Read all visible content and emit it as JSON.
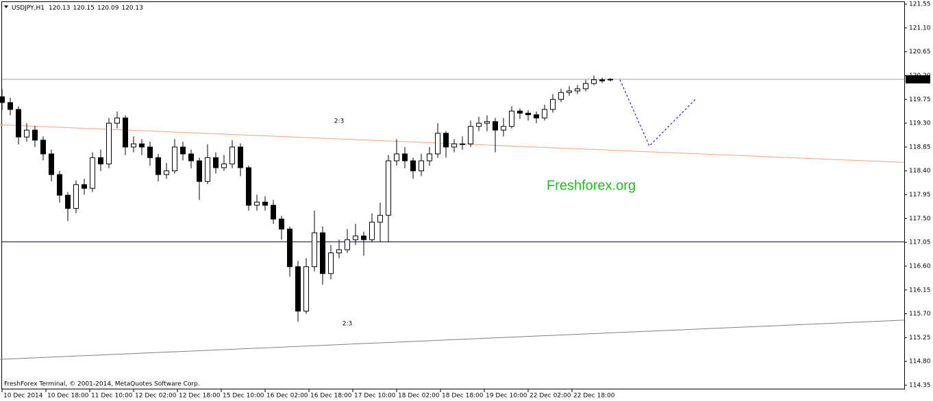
{
  "chart_data": {
    "type": "candlestick",
    "symbol": "USDJPY,H1",
    "footer": "FreshForex Terminal, © 2001-2014, MetaQuotes Software Corp.",
    "watermark": "Freshforex.org",
    "annotations": [
      {
        "text": "2:3",
        "color": "#cc2222"
      },
      {
        "text": "2:3",
        "color": "#000000"
      }
    ],
    "up_color": "#ffffff",
    "down_color": "#000000",
    "outline_color": "#000000",
    "xlim": [
      -0.75,
      329.25
    ],
    "ylim": [
      114.35,
      121.55
    ],
    "yticks": [
      121.55,
      {
        "value": 121.1,
        "label": "121.10"
      },
      120.65,
      {
        "value": 120.2,
        "label": "120.20"
      },
      119.75,
      {
        "value": 119.3,
        "label": "119.30"
      },
      118.85,
      {
        "value": 118.4,
        "label": "118.40"
      },
      117.95,
      {
        "value": 117.5,
        "label": "117.50"
      },
      117.05,
      {
        "value": 116.6,
        "label": "116.60"
      },
      116.15,
      {
        "value": 115.7,
        "label": "115.70"
      },
      115.25,
      {
        "value": 114.8,
        "label": "114.80"
      },
      114.35
    ],
    "xticks": [
      {
        "value": 0,
        "label": "10 Dec 2014"
      },
      {
        "value": 16,
        "label": "10 Dec 18:00"
      },
      {
        "value": 32,
        "label": "11 Dec 10:00"
      },
      {
        "value": 48,
        "label": "12 Dec 02:00"
      },
      {
        "value": 64,
        "label": "12 Dec 18:00"
      },
      {
        "value": 80,
        "label": "15 Dec 10:00"
      },
      {
        "value": 96,
        "label": "16 Dec 02:00"
      },
      {
        "value": 112,
        "label": "16 Dec 18:00"
      },
      {
        "value": 128,
        "label": "17 Dec 10:00"
      },
      {
        "value": 144,
        "label": "18 Dec 02:00"
      },
      {
        "value": 160,
        "label": "18 Dec 18:00"
      },
      {
        "value": 176,
        "label": "19 Dec 10:00"
      },
      {
        "value": 192,
        "label": "22 Dec 02:00"
      },
      {
        "value": 208,
        "label": "22 Dec 18:00"
      }
    ],
    "x": [
      0,
      3,
      6,
      9,
      12,
      15,
      18,
      21,
      24,
      27,
      30,
      33,
      36,
      39,
      42,
      45,
      48,
      51,
      54,
      57,
      60,
      63,
      66,
      69,
      72,
      75,
      78,
      81,
      84,
      87,
      90,
      93,
      96,
      99,
      102,
      105,
      108,
      111,
      114,
      117,
      120,
      123,
      126,
      129,
      132,
      135,
      138,
      141,
      144,
      147,
      150,
      153,
      156,
      159,
      162,
      165,
      168,
      171,
      174,
      177,
      180,
      183,
      186,
      189,
      192,
      195,
      198,
      201,
      204,
      207,
      210,
      213,
      216,
      219,
      222
    ],
    "open": [
      119.8,
      119.69,
      119.56,
      119.04,
      119.17,
      118.98,
      118.72,
      118.33,
      117.94,
      117.69,
      118.14,
      118.07,
      118.65,
      118.53,
      119.3,
      119.4,
      118.85,
      118.91,
      118.85,
      118.65,
      118.33,
      118.4,
      118.85,
      118.72,
      118.59,
      118.2,
      118.65,
      118.46,
      118.53,
      118.85,
      118.46,
      117.75,
      117.81,
      117.75,
      117.49,
      117.3,
      116.59,
      115.75,
      116.59,
      117.23,
      116.46,
      116.85,
      116.91,
      117.1,
      117.17,
      117.1,
      117.43,
      117.56,
      118.59,
      118.72,
      118.59,
      118.4,
      118.59,
      118.72,
      119.11,
      118.85,
      118.91,
      118.91,
      119.24,
      119.3,
      119.33,
      119.17,
      119.24,
      119.53,
      119.49,
      119.46,
      119.4,
      119.56,
      119.75,
      119.88,
      119.91,
      119.95,
      120.05,
      120.12,
      120.13
    ],
    "high": [
      119.95,
      119.78,
      119.62,
      119.3,
      119.25,
      119.05,
      118.8,
      118.4,
      118.0,
      118.22,
      118.25,
      118.75,
      118.8,
      119.4,
      119.52,
      119.45,
      119.05,
      119.0,
      118.95,
      118.72,
      118.55,
      119.0,
      118.95,
      118.8,
      118.65,
      118.9,
      118.75,
      118.7,
      118.98,
      118.92,
      118.5,
      117.95,
      117.92,
      117.85,
      117.55,
      117.35,
      116.7,
      116.75,
      117.65,
      117.35,
      117.0,
      117.1,
      117.3,
      117.4,
      117.25,
      117.6,
      117.8,
      118.7,
      119.0,
      118.85,
      118.65,
      118.72,
      118.85,
      119.3,
      119.15,
      119.0,
      119.05,
      119.35,
      119.42,
      119.45,
      119.4,
      119.4,
      119.62,
      119.58,
      119.55,
      119.52,
      119.65,
      119.85,
      119.95,
      120.0,
      120.02,
      120.12,
      120.2,
      120.16,
      120.15
    ],
    "low": [
      119.55,
      119.45,
      118.9,
      118.95,
      118.85,
      118.6,
      118.2,
      117.8,
      117.45,
      117.6,
      117.95,
      118.0,
      118.4,
      118.45,
      119.2,
      118.7,
      118.75,
      118.7,
      118.5,
      118.2,
      118.25,
      118.35,
      118.6,
      118.45,
      117.85,
      118.15,
      118.35,
      118.4,
      118.45,
      118.3,
      117.65,
      117.65,
      117.65,
      117.4,
      117.1,
      116.4,
      115.55,
      115.7,
      116.5,
      116.25,
      116.35,
      116.75,
      116.85,
      117.0,
      116.8,
      117.05,
      117.05,
      117.05,
      118.5,
      118.45,
      118.25,
      118.3,
      118.5,
      118.65,
      118.65,
      118.75,
      118.8,
      118.85,
      119.15,
      119.15,
      118.75,
      119.05,
      119.2,
      119.38,
      119.35,
      119.3,
      119.35,
      119.5,
      119.7,
      119.82,
      119.85,
      119.9,
      120.02,
      120.06,
      120.09
    ],
    "close": [
      119.69,
      119.56,
      119.04,
      119.17,
      118.98,
      118.72,
      118.33,
      117.94,
      117.69,
      118.14,
      118.07,
      118.65,
      118.53,
      119.3,
      119.4,
      118.85,
      118.91,
      118.85,
      118.65,
      118.33,
      118.4,
      118.85,
      118.72,
      118.59,
      118.2,
      118.65,
      118.46,
      118.53,
      118.85,
      118.46,
      117.75,
      117.81,
      117.75,
      117.49,
      117.3,
      116.59,
      115.75,
      116.59,
      117.23,
      116.46,
      116.85,
      116.91,
      117.1,
      117.17,
      117.1,
      117.43,
      117.56,
      118.59,
      118.72,
      118.59,
      118.4,
      118.59,
      118.72,
      119.11,
      118.85,
      118.91,
      118.91,
      119.24,
      119.3,
      119.33,
      119.17,
      119.24,
      119.53,
      119.49,
      119.46,
      119.4,
      119.56,
      119.75,
      119.88,
      119.91,
      119.95,
      120.05,
      120.12,
      120.1,
      120.13
    ],
    "hlines": [
      {
        "value": 120.13,
        "color": "#a0a0a0"
      },
      {
        "value": 117.06,
        "color": "#000066"
      }
    ],
    "trendlines": [
      {
        "x": [
          -0.75,
          329.25
        ],
        "y": [
          119.27,
          118.56
        ],
        "color": "#f0a080",
        "dash": false
      },
      {
        "x": [
          -0.75,
          329.25
        ],
        "y": [
          114.84,
          115.58
        ],
        "color": "#808080",
        "dash": false
      },
      {
        "x": [
          225.5,
          236.25,
          253
        ],
        "y": [
          120.12,
          118.87,
          119.75
        ],
        "color": "#0000cc",
        "dash": true
      }
    ]
  }
}
